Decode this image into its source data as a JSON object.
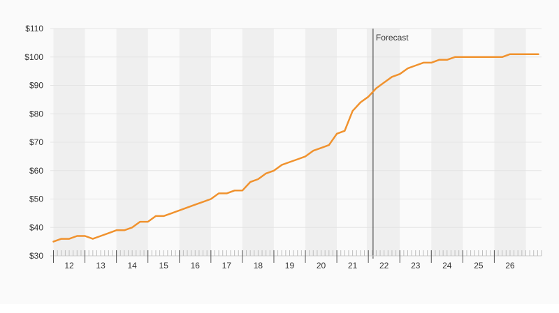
{
  "chart_data": {
    "type": "line",
    "title": "",
    "xlabel": "",
    "ylabel": "",
    "ylim": [
      30,
      110
    ],
    "y_ticks": [
      30,
      40,
      50,
      60,
      70,
      80,
      90,
      100,
      110
    ],
    "y_tick_labels": [
      "$30",
      "$40",
      "$50",
      "$60",
      "$70",
      "$80",
      "$90",
      "$100",
      "$110"
    ],
    "x_ticks": [
      12,
      13,
      14,
      15,
      16,
      17,
      18,
      19,
      20,
      21,
      22,
      23,
      24,
      25,
      26
    ],
    "x_tick_labels": [
      "12",
      "13",
      "14",
      "15",
      "16",
      "17",
      "18",
      "19",
      "20",
      "21",
      "22",
      "23",
      "24",
      "25",
      "26"
    ],
    "xlim": [
      11.4,
      27.0
    ],
    "grid": "horizontal",
    "alternate_day_bands": true,
    "legend": "none",
    "line_color": "#f0922e",
    "band_color": "#efefef",
    "series": [
      {
        "x": [
          11.5,
          11.75,
          12.0,
          12.25,
          12.5,
          12.75,
          13.0,
          13.25,
          13.5,
          13.75,
          14.0,
          14.25,
          14.5,
          14.75,
          15.0,
          15.25,
          15.5,
          15.75,
          16.0,
          16.25,
          16.5,
          16.75,
          17.0,
          17.25,
          17.5,
          17.75,
          18.0,
          18.25,
          18.5,
          18.75,
          19.0,
          19.25,
          19.5,
          19.75,
          20.0,
          20.25,
          20.5,
          20.75,
          21.0,
          21.25,
          21.5,
          21.75,
          22.0,
          22.25,
          22.5,
          22.75,
          23.0,
          23.25,
          23.5,
          23.75,
          24.0,
          24.25,
          24.5,
          24.75,
          25.0,
          25.25,
          25.5,
          25.75,
          26.0,
          26.25,
          26.5,
          26.75,
          26.9
        ],
        "values": [
          35,
          36,
          36,
          37,
          37,
          36,
          37,
          38,
          39,
          39,
          40,
          42,
          42,
          44,
          44,
          45,
          46,
          47,
          48,
          49,
          50,
          52,
          52,
          53,
          53,
          56,
          57,
          59,
          60,
          62,
          63,
          64,
          65,
          67,
          68,
          69,
          73,
          74,
          81,
          84,
          86,
          89,
          91,
          93,
          94,
          96,
          97,
          98,
          98,
          99,
          99,
          100,
          100,
          100,
          100,
          100,
          100,
          100,
          101,
          101,
          101,
          101,
          101
        ]
      }
    ],
    "annotations": [
      {
        "x": 21.65,
        "label": "Forecast",
        "shaded_from": 21.45,
        "shaded_to": 21.65
      }
    ]
  }
}
